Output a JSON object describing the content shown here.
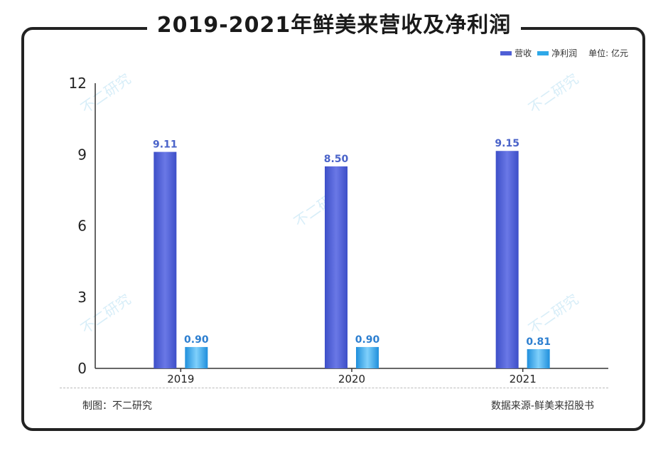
{
  "title": "2019-2021年鲜美来营收及净利润",
  "legend": {
    "revenue": "营收",
    "profit": "净利润",
    "unit": "单位: 亿元"
  },
  "footer": {
    "left": "制图：不二研究",
    "right": "数据来源-鲜美来招股书"
  },
  "watermark": "不二研究",
  "colors": {
    "revenue": "#4f5fd6",
    "profit": "#2ea8e8",
    "label_revenue": "#4a63c9",
    "label_profit": "#2d7fd0"
  },
  "chart_data": {
    "type": "bar",
    "title": "2019-2021年鲜美来营收及净利润",
    "categories": [
      "2019",
      "2020",
      "2021"
    ],
    "series": [
      {
        "name": "营收",
        "values": [
          9.11,
          8.5,
          9.15
        ],
        "labels": [
          "9.11",
          "8.50",
          "9.15"
        ]
      },
      {
        "name": "净利润",
        "values": [
          0.9,
          0.9,
          0.81
        ],
        "labels": [
          "0.90",
          "0.90",
          "0.81"
        ]
      }
    ],
    "yticks": [
      "0",
      "3",
      "6",
      "9",
      "12"
    ],
    "ylim": [
      0,
      12
    ],
    "grid": false,
    "legend_position": "top-right"
  }
}
